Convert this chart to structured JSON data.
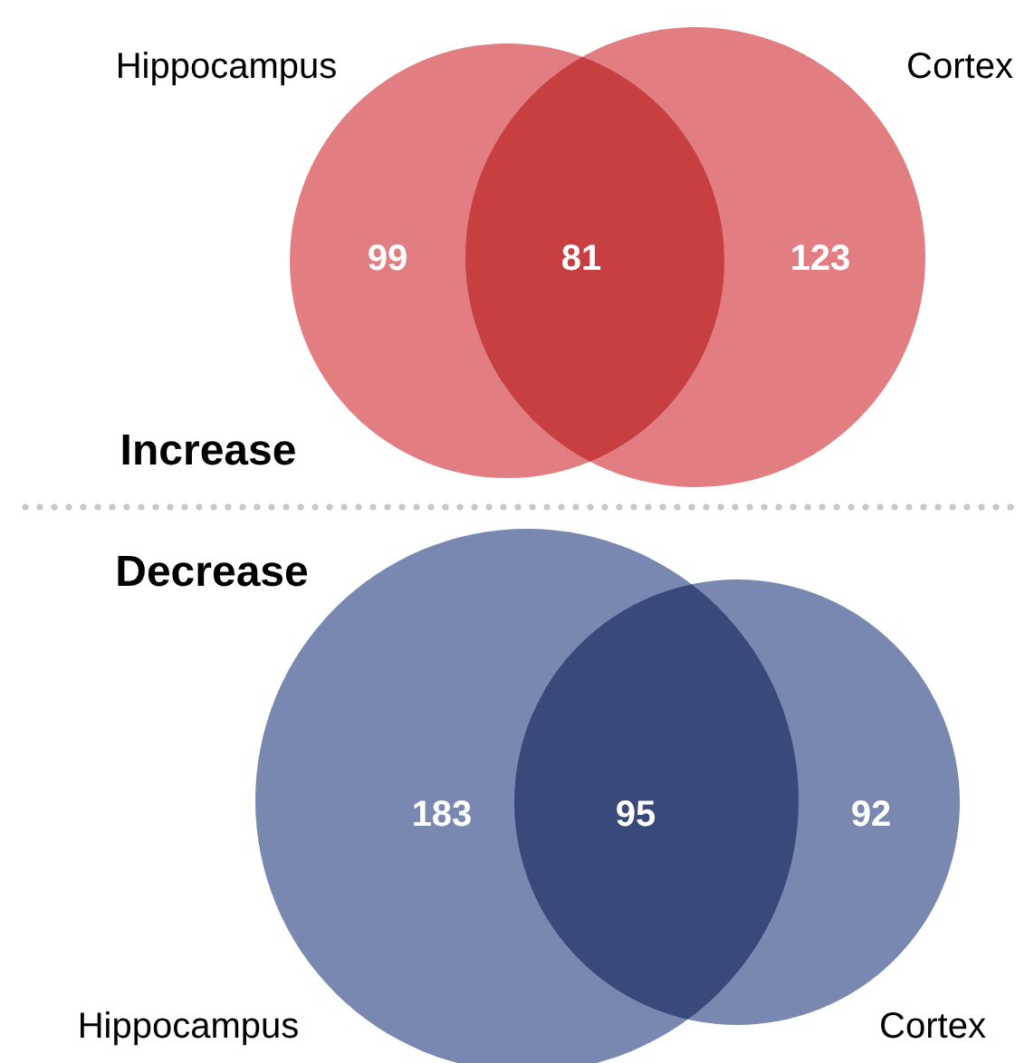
{
  "chart_data": [
    {
      "type": "other",
      "title": "Increase",
      "categories": [
        null,
        null,
        null
      ],
      "values": [
        99,
        81,
        123
      ],
      "annotations": [
        "Hippocampus",
        "Cortex"
      ],
      "color": "#d6474b",
      "data_labels": true
    },
    {
      "type": "other",
      "title": "Decrease",
      "categories": [
        null,
        null,
        null
      ],
      "values": [
        183,
        95,
        92
      ],
      "annotations": [
        "Hippocampus",
        "Cortex"
      ],
      "color": "#3f5690",
      "data_labels": true
    }
  ]
}
